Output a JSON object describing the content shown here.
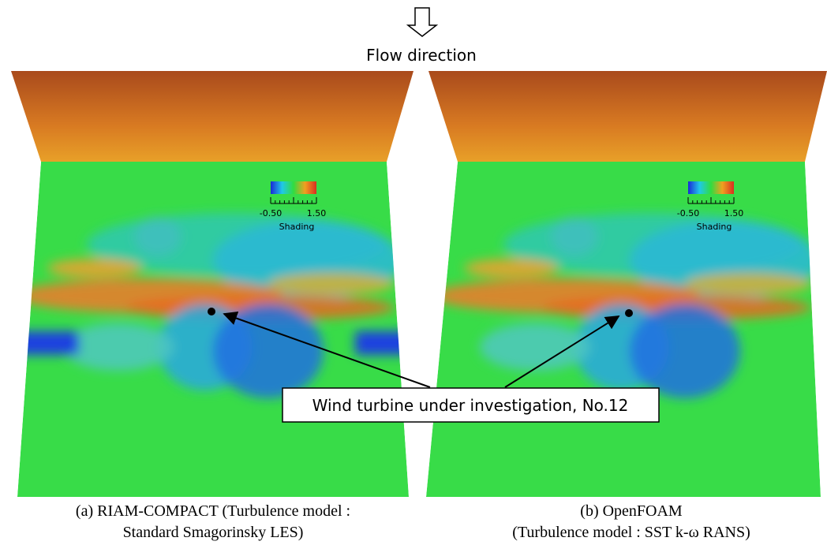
{
  "header": {
    "label": "Flow direction"
  },
  "panels": [
    {
      "colorbar": {
        "min_label": "-0.50",
        "max_label": "1.50",
        "title": "Shading"
      },
      "caption": [
        "(a) RIAM-COMPACT (Turbulence model :",
        "Standard Smagorinsky LES)"
      ]
    },
    {
      "colorbar": {
        "min_label": "-0.50",
        "max_label": "1.50",
        "title": "Shading"
      },
      "caption": [
        "(b) OpenFOAM",
        "(Turbulence model : SST k-ω RANS)"
      ]
    }
  ],
  "callout": {
    "label": "Wind turbine under investigation, No.12"
  }
}
